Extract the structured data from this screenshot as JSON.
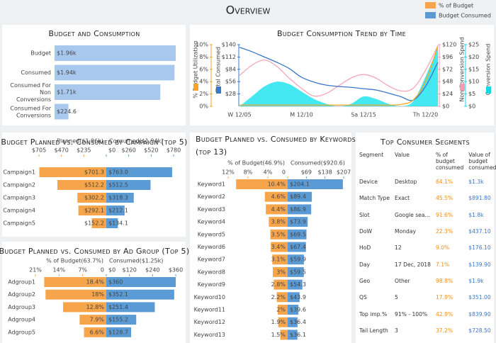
{
  "header": {
    "title": "Overview"
  },
  "legend": [
    {
      "label": "% of Budget",
      "color": "#f7a54a"
    },
    {
      "label": "Budget Consumed",
      "color": "#5b9bd5"
    }
  ],
  "chart_data": [
    {
      "type": "bar",
      "title": "Budget and Consumption",
      "orientation": "horizontal",
      "color": "#a9c8ee",
      "categories": [
        "Budget",
        "Consumed",
        "Consumed For Non Conversions",
        "Consumed For Conversions"
      ],
      "values": [
        1960,
        1940,
        1710,
        224.6
      ],
      "value_labels": [
        "$1.96k",
        "$1.94k",
        "$1.71k",
        "$224.6"
      ]
    },
    {
      "type": "line",
      "title": "Budget Consumption Trend by Time",
      "categories": [
        "W 12/05",
        null,
        null,
        null,
        null,
        "M 12/10",
        null,
        null,
        null,
        null,
        "Sa 12/15",
        null,
        null,
        null,
        null,
        "Th 12/20",
        null
      ],
      "axes": [
        {
          "label": "% Budget Utilization",
          "color": "#f5a623",
          "lim": [
            0,
            10
          ],
          "ticks": [
            {
              "value": 0,
              "label": "0%"
            },
            {
              "value": 2,
              "label": "2%"
            },
            {
              "value": 4,
              "label": "4%"
            },
            {
              "value": 6,
              "label": "6%"
            },
            {
              "value": 8,
              "label": "8%"
            },
            {
              "value": 10,
              "label": "10%"
            }
          ]
        },
        {
          "label": "Total Consumed",
          "color": "#3c78c8",
          "lim": [
            0,
            140
          ],
          "ticks": [
            {
              "value": 28,
              "label": "$28"
            },
            {
              "value": 56,
              "label": "$56"
            },
            {
              "value": 84,
              "label": "$84"
            },
            {
              "value": 112,
              "label": "$112"
            },
            {
              "value": 140,
              "label": "$140"
            }
          ]
        },
        {
          "label": "Non Conversion Spend",
          "color": "#f29bb2",
          "lim": [
            0,
            120
          ],
          "ticks": [
            {
              "value": 0,
              "label": "$0"
            },
            {
              "value": 24,
              "label": "$24"
            },
            {
              "value": 48,
              "label": "$48"
            },
            {
              "value": 72,
              "label": "$72"
            },
            {
              "value": 96,
              "label": "$96"
            },
            {
              "value": 120,
              "label": "$120"
            }
          ]
        },
        {
          "label": "Conversion Spend",
          "color": "#19d6e6",
          "lim": [
            0,
            25
          ],
          "ticks": [
            {
              "value": 0,
              "label": "$0"
            },
            {
              "value": 5,
              "label": "$5"
            },
            {
              "value": 10,
              "label": "$10"
            },
            {
              "value": 15,
              "label": "$15"
            },
            {
              "value": 20,
              "label": "$20"
            },
            {
              "value": 25,
              "label": "$25"
            }
          ]
        }
      ],
      "series": [
        {
          "axis": 3,
          "style": "area",
          "color": "#2fe6f0",
          "values": [
            0,
            4,
            8,
            10,
            9,
            6,
            3,
            1,
            0,
            1,
            4,
            3,
            1,
            0,
            2,
            12,
            24
          ]
        },
        {
          "axis": 2,
          "style": "line",
          "color": "#f4a7b9",
          "values": [
            60,
            80,
            90,
            78,
            55,
            35,
            20,
            25,
            40,
            55,
            62,
            55,
            40,
            30,
            35,
            70,
            118
          ]
        },
        {
          "axis": 1,
          "style": "line",
          "color": "#3c78c8",
          "values": [
            134,
            124,
            112,
            100,
            86,
            66,
            55,
            48,
            45,
            43,
            40,
            37,
            30,
            22,
            14,
            45,
            100
          ]
        },
        {
          "axis": 0,
          "style": "line",
          "color": "#f5a623",
          "values": [
            0.2,
            0.2,
            0.2,
            0.2,
            0.2,
            0.2,
            0.2,
            0.2,
            0.2,
            0.2,
            0.2,
            0.2,
            0.2,
            0.3,
            1,
            4,
            9.8
          ]
        }
      ]
    },
    {
      "type": "diverging",
      "title": "Budget Planned vs. Consumed by Campaign (top 5)",
      "categories": [
        "Campaign1",
        "Campaign2",
        "Campaign3",
        "Campaign4",
        "Campaign5"
      ],
      "series": [
        {
          "name": "Planned($1.96k)",
          "color": "#f7a54a",
          "xlim": [
            0,
            705
          ],
          "xticks": [
            {
              "value": 705,
              "label": "$705"
            },
            {
              "value": 470,
              "label": "$470"
            },
            {
              "value": 235,
              "label": "$235"
            }
          ],
          "values": [
            701.3,
            512.2,
            302.2,
            292.1,
            152.2
          ],
          "value_labels": [
            "$701.3",
            "$512.2",
            "$302.2",
            "$292.1",
            "$152.2"
          ]
        },
        {
          "name": "Consumed($1.94k)",
          "color": "#5b9bd5",
          "xlim": [
            0,
            780
          ],
          "xticks": [
            {
              "value": 0,
              "label": "$0"
            },
            {
              "value": 260,
              "label": "$260"
            },
            {
              "value": 520,
              "label": "$520"
            },
            {
              "value": 780,
              "label": "$780"
            }
          ],
          "values": [
            763,
            512.5,
            318.3,
            212.1,
            134.1
          ],
          "value_labels": [
            "$763.0",
            "$512.5",
            "$318.3",
            "$212.1",
            "$134.1"
          ]
        }
      ]
    },
    {
      "type": "diverging",
      "title": "Budget Planned vs. Consumed by Ad Group (Top 5)",
      "categories": [
        "Adgroup1",
        "Adgroup2",
        "Adgroup3",
        "Adgroup4",
        "Adgroup5"
      ],
      "series": [
        {
          "name": "% of Budget(63.7%)",
          "color": "#f7a54a",
          "xlim": [
            0,
            21
          ],
          "xticks": [
            {
              "value": 21,
              "label": "21%"
            },
            {
              "value": 14,
              "label": "14%"
            },
            {
              "value": 7,
              "label": "7%"
            },
            0
          ],
          "values": [
            18.4,
            18,
            12.8,
            7.9,
            6.6
          ],
          "value_labels": [
            "18.4%",
            "18%",
            "12.8%",
            "7.9%",
            "6.6%"
          ]
        },
        {
          "name": "Consumed($1.25k)",
          "color": "#5b9bd5",
          "xlim": [
            0,
            360
          ],
          "xticks": [
            {
              "value": 0,
              "label": "$0"
            },
            {
              "value": 120,
              "label": "$120"
            },
            {
              "value": 240,
              "label": "$240"
            },
            {
              "value": 360,
              "label": "$360"
            }
          ],
          "values": [
            360,
            352.1,
            251.4,
            155.2,
            128.7
          ],
          "value_labels": [
            "$360",
            "$352.1",
            "$251.4",
            "$155.2",
            "$128.7"
          ]
        }
      ]
    },
    {
      "type": "diverging",
      "title": "Budget Planned vs. Consumed by Keywords (top 13)",
      "categories": [
        "Keyword1",
        "Keyword2",
        "Keyword3",
        "Keyword4",
        "Keyword5",
        "Keyword6",
        "Keyword7",
        "Keyword8",
        "Keyword9",
        "Keyword10",
        "Keyword11",
        "Keyword12",
        "Keyword13"
      ],
      "series": [
        {
          "name": "% of Budget(46.9%)",
          "color": "#f7a54a",
          "xlim": [
            0,
            12
          ],
          "xticks": [
            {
              "value": 12,
              "label": "12%"
            },
            {
              "value": 8,
              "label": "8%"
            },
            {
              "value": 4,
              "label": "4%"
            },
            0
          ],
          "values": [
            10.4,
            4.6,
            4.4,
            3.8,
            3.5,
            3.4,
            3.1,
            3,
            2.8,
            2.2,
            2,
            1.9,
            1.5
          ],
          "value_labels": [
            "10.4%",
            "4.6%",
            "4.4%",
            "3.8%",
            "3.5%",
            "3.4%",
            "3.1%",
            "3%",
            "2.8%",
            "2.2%",
            "2%",
            "1.9%",
            "1.5%"
          ]
        },
        {
          "name": "Consumed($920.6)",
          "color": "#5b9bd5",
          "xlim": [
            0,
            207
          ],
          "xticks": [
            {
              "value": 69,
              "label": "$69"
            },
            {
              "value": 138,
              "label": "$138"
            },
            {
              "value": 207,
              "label": "$207"
            }
          ],
          "values": [
            204.1,
            89.4,
            86.9,
            73.9,
            69.5,
            67.4,
            59.9,
            59.5,
            54.3,
            43.9,
            39.6,
            36.4,
            36.1
          ],
          "value_labels": [
            "$204.1",
            "$89.4",
            "$86.9",
            "$73.9",
            "$69.5",
            "$67.4",
            "$59.9",
            "$59.5",
            "$54.3",
            "$43.9",
            "$39.6",
            "$36.4",
            "$36.1"
          ]
        }
      ]
    }
  ],
  "table": {
    "title": "Top Consumer Segments",
    "columns": [
      "Segment",
      "Value",
      "% of budget consumed",
      "Value of budget consumed"
    ],
    "rows": [
      [
        "Device",
        "Desktop",
        "64.1%",
        "$1.3k"
      ],
      [
        "Match Type",
        "Exact",
        "45.5%",
        "$891.80"
      ],
      [
        "Slot",
        "Google sea...",
        "91.6%",
        "$1.8k"
      ],
      [
        "DoW",
        "Monday",
        "22.3%",
        "$437.10"
      ],
      [
        "HoD",
        "12",
        "9.0%",
        "$176.10"
      ],
      [
        "Day",
        "17 Dec, 2018",
        "7.1%",
        "$139.90"
      ],
      [
        "Geo",
        "Other",
        "98.8%",
        "$1.9k"
      ],
      [
        "QS",
        "5",
        "17.9%",
        "$351.00"
      ],
      [
        "Top imp.%",
        "91% - 100%",
        "42.9%",
        "$839.90"
      ],
      [
        "Tail Length",
        "3",
        "37.2%",
        "$728.50"
      ]
    ]
  }
}
